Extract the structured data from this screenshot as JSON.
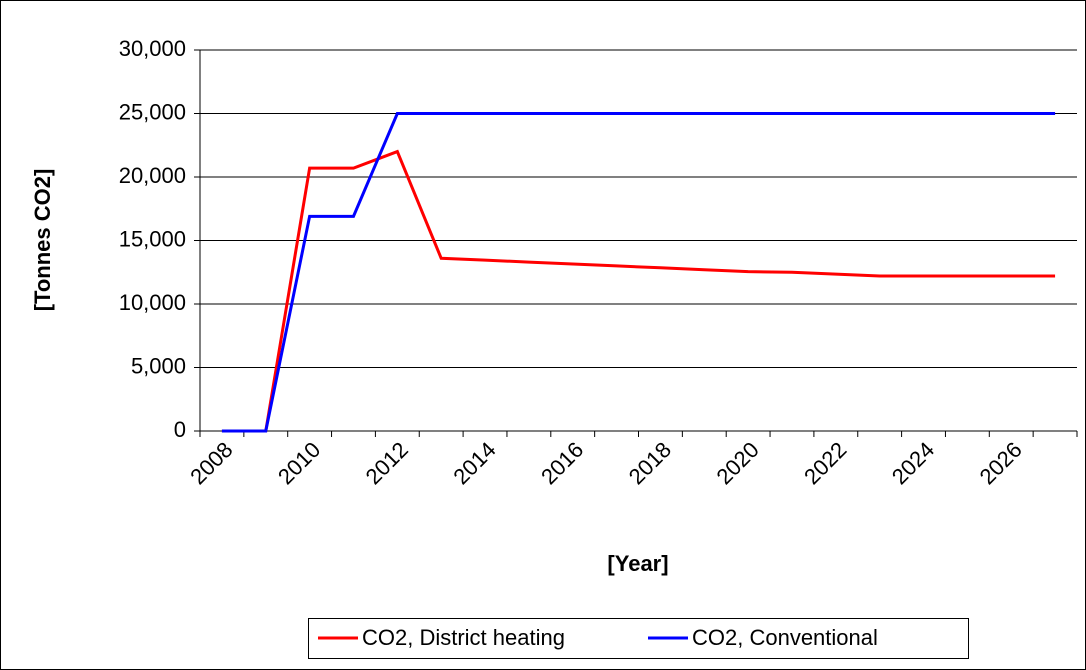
{
  "chart_data": {
    "type": "line",
    "xlabel": "[Year]",
    "ylabel": "[Tonnes CO2]",
    "categories": [
      "2008",
      null,
      "2010",
      null,
      "2012",
      null,
      "2014",
      null,
      "2016",
      null,
      "2018",
      null,
      "2020",
      null,
      "2022",
      null,
      "2024",
      null,
      "2026",
      null
    ],
    "series": [
      {
        "name": "CO2, District heating",
        "color": "#ff0000",
        "values": [
          0,
          0,
          20700,
          20700,
          22000,
          13600,
          13450,
          13300,
          13150,
          13000,
          12850,
          12700,
          12550,
          12500,
          12350,
          12200,
          12200,
          12200,
          12200,
          12200
        ]
      },
      {
        "name": "CO2, Conventional",
        "color": "#0000ff",
        "values": [
          0,
          0,
          16900,
          16900,
          25000,
          25000,
          25000,
          25000,
          25000,
          25000,
          25000,
          25000,
          25000,
          25000,
          25000,
          25000,
          25000,
          25000,
          25000,
          25000
        ]
      }
    ],
    "ylim": [
      0,
      30000
    ],
    "yticks": [
      0,
      {
        "value": 5000,
        "label": "5,000"
      },
      {
        "value": 10000,
        "label": "10,000"
      },
      {
        "value": 15000,
        "label": "15,000"
      },
      {
        "value": 20000,
        "label": "20,000"
      },
      {
        "value": 25000,
        "label": "25,000"
      },
      {
        "value": 30000,
        "label": "30,000"
      }
    ],
    "grid": true,
    "legend": "bottom"
  }
}
